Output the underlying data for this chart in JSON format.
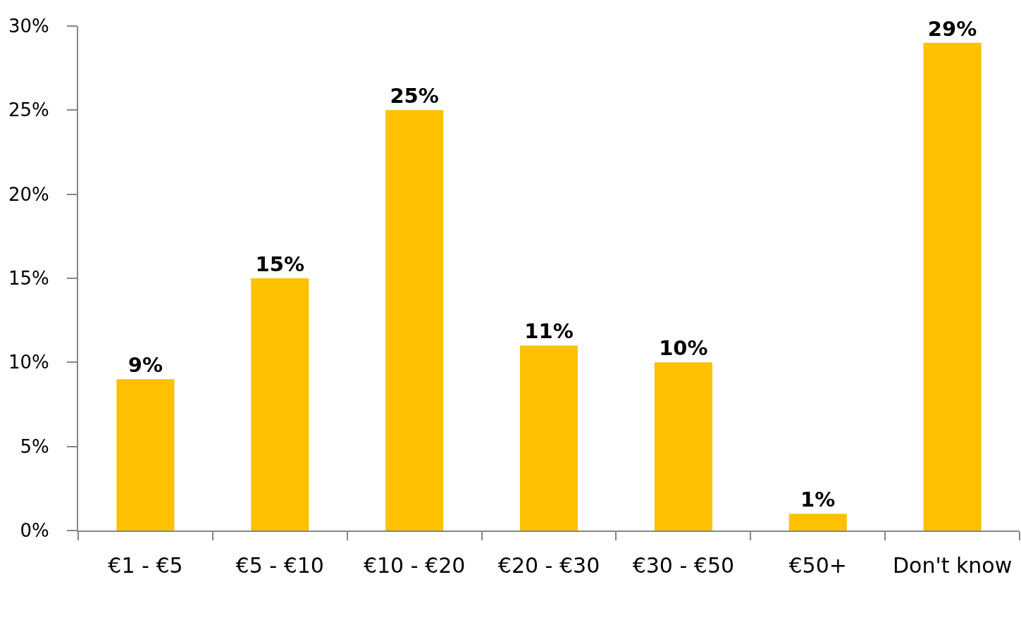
{
  "chart_data": {
    "type": "bar",
    "categories": [
      "€1 - €5",
      "€5 - €10",
      "€10 - €20",
      "€20 - €30",
      "€30 - €50",
      "€50+",
      "Don't know"
    ],
    "values": [
      9,
      15,
      25,
      11,
      10,
      1,
      29
    ],
    "value_labels": [
      "9%",
      "15%",
      "25%",
      "11%",
      "10%",
      "1%",
      "29%"
    ],
    "color": "#ffc000",
    "ylim": [
      0,
      30
    ],
    "yticks": [
      {
        "value": 0,
        "label": "0%"
      },
      {
        "value": 5,
        "label": "5%"
      },
      {
        "value": 10,
        "label": "10%"
      },
      {
        "value": 15,
        "label": "15%"
      },
      {
        "value": 20,
        "label": "20%"
      },
      {
        "value": 25,
        "label": "25%"
      },
      {
        "value": 30,
        "label": "30%"
      }
    ]
  }
}
